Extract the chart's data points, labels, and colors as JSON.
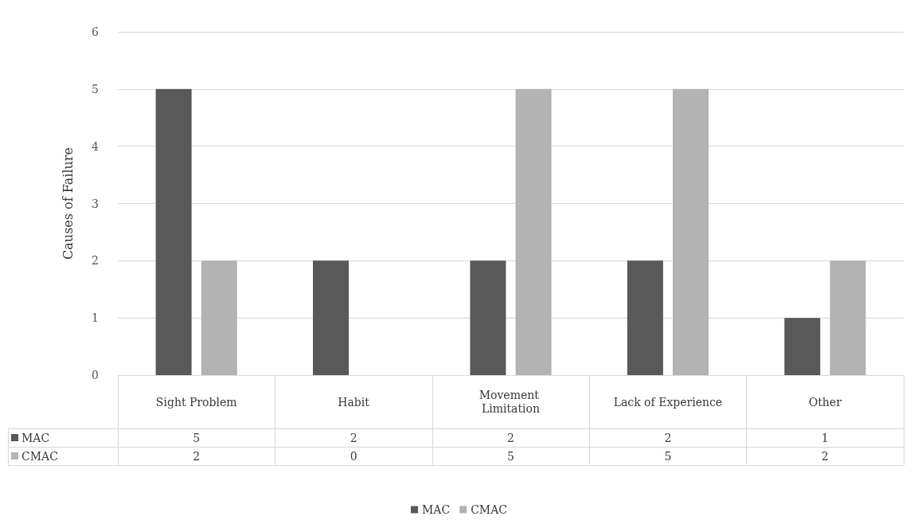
{
  "chart_data": {
    "type": "bar",
    "ylabel": "Causes of Failure",
    "categories": [
      "Sight Problem",
      "Habit",
      "Movement Limitation",
      "Lack of Experience",
      "Other"
    ],
    "series": [
      {
        "name": "MAC",
        "color": "#595959",
        "values": [
          5,
          2,
          2,
          2,
          1
        ]
      },
      {
        "name": "CMAC",
        "color": "#b3b3b3",
        "values": [
          2,
          0,
          5,
          5,
          2
        ]
      }
    ],
    "ylim": [
      0,
      6
    ],
    "yticks": [
      0,
      1,
      2,
      3,
      4,
      5,
      6
    ],
    "grid": "y",
    "legend": "bottom",
    "data_labels": true
  }
}
